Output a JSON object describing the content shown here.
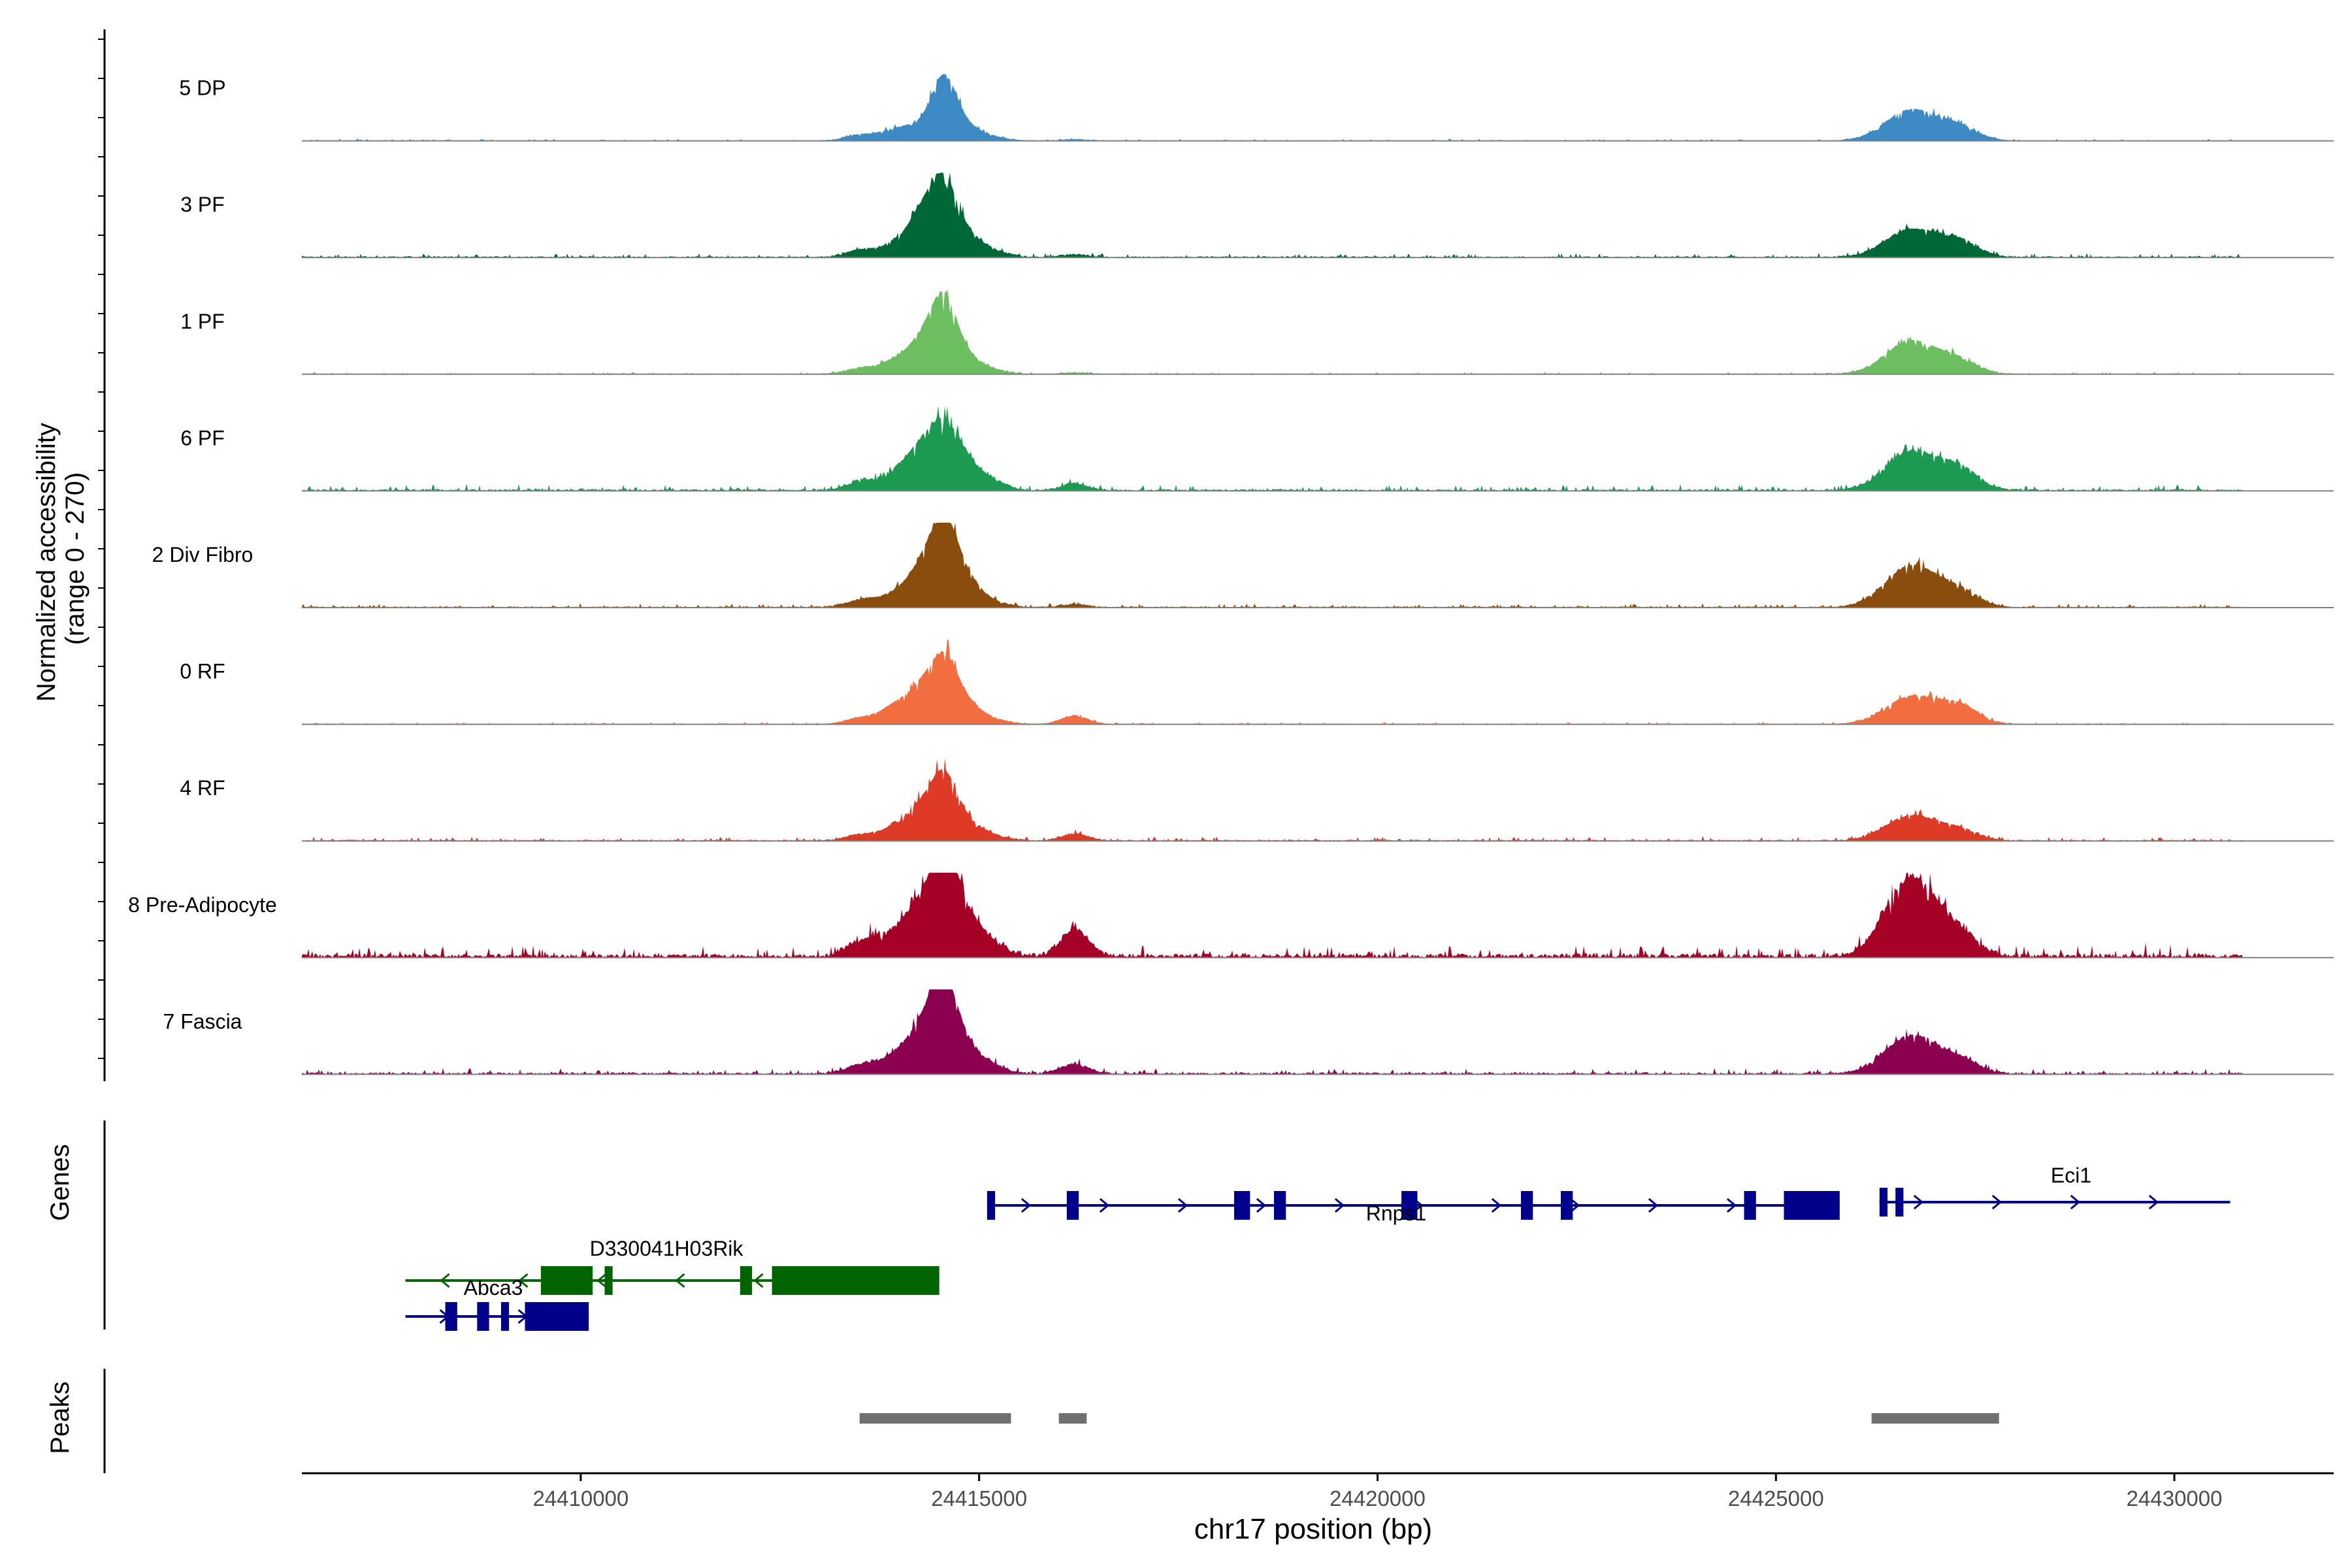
{
  "chart_data": {
    "type": "area",
    "title": "",
    "xlabel": "chr17 position (bp)",
    "ylabel_line1": "Normalized accessibility",
    "ylabel_line2": "(range 0 - 270)",
    "xlim": [
      24406500,
      24432000
    ],
    "ylim": [
      0,
      270
    ],
    "x_ticks": [
      24410000,
      24415000,
      24420000,
      24425000,
      24430000
    ],
    "x_tick_labels": [
      "24410000",
      "24415000",
      "24420000",
      "24425000",
      "24430000"
    ],
    "peak_centers": [
      24413500,
      24414000,
      24414300,
      24414550,
      24414750,
      24415100,
      24416200,
      24426700,
      24427300
    ],
    "tracks": [
      {
        "name": "5 DP",
        "color": "#3E8AC5",
        "values": [
          8,
          18,
          12,
          78,
          22,
          6,
          2,
          45,
          18
        ],
        "noise": 1
      },
      {
        "name": "3 PF",
        "color": "#006837",
        "values": [
          10,
          22,
          55,
          82,
          36,
          10,
          4,
          40,
          22
        ],
        "noise": 2
      },
      {
        "name": "1 PF",
        "color": "#6DBE60",
        "values": [
          8,
          22,
          40,
          88,
          30,
          6,
          2,
          48,
          18
        ],
        "noise": 1
      },
      {
        "name": "6 PF",
        "color": "#1D9A51",
        "values": [
          12,
          30,
          50,
          60,
          45,
          14,
          10,
          56,
          30
        ],
        "noise": 3
      },
      {
        "name": "2 Div Fibro",
        "color": "#8B4D0E",
        "values": [
          10,
          22,
          50,
          88,
          50,
          8,
          4,
          60,
          22
        ],
        "noise": 2
      },
      {
        "name": "0 RF",
        "color": "#F26D40",
        "values": [
          8,
          30,
          40,
          70,
          35,
          8,
          12,
          40,
          25
        ],
        "noise": 1
      },
      {
        "name": "4 RF",
        "color": "#DE3A26",
        "values": [
          8,
          22,
          38,
          72,
          30,
          8,
          10,
          36,
          14
        ],
        "noise": 2
      },
      {
        "name": "8 Pre-Adipocyte",
        "color": "#A50026",
        "values": [
          20,
          40,
          55,
          105,
          62,
          20,
          40,
          112,
          28
        ],
        "noise": 6
      },
      {
        "name": "7 Fascia",
        "color": "#8C0050",
        "values": [
          12,
          30,
          55,
          100,
          45,
          12,
          14,
          55,
          18
        ],
        "noise": 3
      }
    ],
    "genes": [
      {
        "name": "Rnps1",
        "strand": "+",
        "start": 24415100,
        "end": 24425800,
        "color": "#00008B",
        "exons": [
          [
            24415100,
            24415200
          ],
          [
            24416100,
            24416250
          ],
          [
            24418200,
            24418400
          ],
          [
            24418700,
            24418850
          ],
          [
            24420300,
            24420500
          ],
          [
            24421800,
            24421950
          ],
          [
            24422300,
            24422450
          ],
          [
            24424600,
            24424750
          ],
          [
            24425100,
            24425800
          ]
        ]
      },
      {
        "name": "Eci1",
        "strand": "+",
        "start": 24426300,
        "end": 24430700,
        "color": "#00008B",
        "exons": [
          [
            24426300,
            24426400
          ],
          [
            24426500,
            24426600
          ]
        ]
      },
      {
        "name": "D330041H03Rik",
        "strand": "-",
        "start": 24407800,
        "end": 24414500,
        "color": "#006400",
        "exons": [
          [
            24409500,
            24410150
          ],
          [
            24410300,
            24410400
          ],
          [
            24412000,
            24412150
          ],
          [
            24412400,
            24414500
          ]
        ]
      },
      {
        "name": "Abca3",
        "strand": "+",
        "start": 24407800,
        "end": 24410100,
        "color": "#00008B",
        "exons": [
          [
            24408300,
            24408450
          ],
          [
            24408700,
            24408850
          ],
          [
            24409000,
            24409100
          ],
          [
            24409300,
            24410100
          ]
        ]
      }
    ],
    "peaks": [
      [
        24413500,
        24415400
      ],
      [
        24416000,
        24416350
      ],
      [
        24426200,
        24427800
      ]
    ],
    "gene_panel_label": "Genes",
    "peak_panel_label": "Peaks"
  }
}
